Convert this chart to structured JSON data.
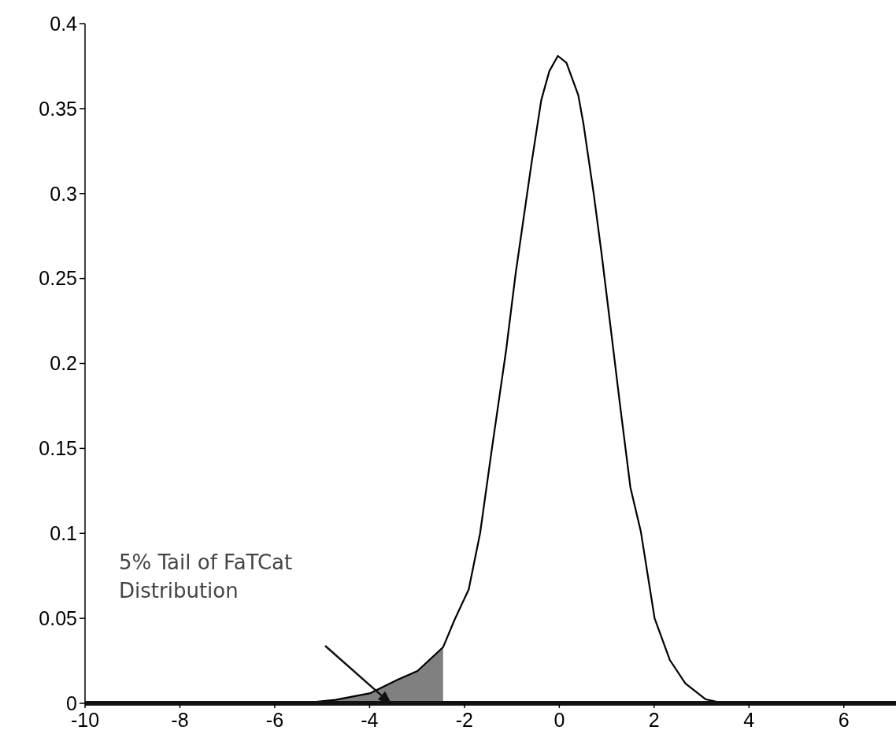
{
  "chart_data": {
    "type": "line",
    "xlim": [
      -10,
      7.1
    ],
    "ylim": [
      0,
      0.4
    ],
    "xticks": [
      -10,
      -8,
      -6,
      -4,
      -2,
      0,
      2,
      4,
      6
    ],
    "yticks": [
      0,
      0.05,
      0.1,
      0.15,
      0.2,
      0.25,
      0.3,
      0.35,
      0.4
    ],
    "grid": false,
    "series": [
      {
        "type": "area",
        "color": "#808080",
        "x": [
          -5.46,
          -4.72,
          -3.98,
          -3.4,
          -2.99,
          -2.45
        ],
        "values": [
          0,
          0.002,
          0.006,
          0.014,
          0.019,
          0.033
        ]
      },
      {
        "color": "#000000",
        "x": [
          -10,
          -5.46,
          -4.72,
          -3.98,
          -3.4,
          -2.99,
          -2.45,
          -2.21,
          -1.91,
          -1.67,
          -1.42,
          -1.12,
          -0.92,
          -0.76,
          -0.59,
          -0.38,
          -0.21,
          -0.03,
          0.15,
          0.4,
          0.51,
          0.73,
          0.89,
          1.14,
          1.27,
          1.5,
          1.72,
          2.01,
          2.33,
          2.66,
          3.09,
          3.48,
          7.1
        ],
        "values": [
          0,
          0,
          0.002,
          0.006,
          0.014,
          0.019,
          0.033,
          0.049,
          0.067,
          0.1,
          0.15,
          0.208,
          0.253,
          0.284,
          0.317,
          0.355,
          0.372,
          0.381,
          0.377,
          0.358,
          0.341,
          0.299,
          0.265,
          0.208,
          0.178,
          0.127,
          0.101,
          0.05,
          0.0255,
          0.0116,
          0.0023,
          0,
          0
        ]
      }
    ],
    "annotations": [
      "5% Tail of FaTCat Distribution"
    ]
  }
}
